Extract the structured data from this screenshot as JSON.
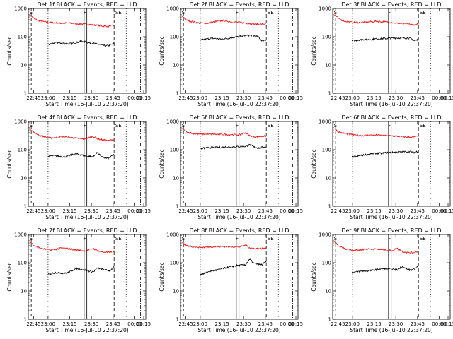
{
  "chart_data": {
    "type": "line",
    "layout": "3x3 grid of panels",
    "x_tick_labels": [
      "22:45",
      "23:00",
      "23:15",
      "23:30",
      "23:45",
      "00:00",
      "00:15"
    ],
    "y_tick_labels": [
      "1",
      "10",
      "100",
      "1000"
    ],
    "ylim": [
      1,
      1000
    ],
    "yscale": "log",
    "ylabel": "Counts/sec",
    "xlabel": "Start Time (16-Jul-10 22:37:20)",
    "series_colors": {
      "events": "#000000",
      "lld": "#ff0000"
    },
    "panels": [
      {
        "title": "Det 1f BLACK = Events, RED = LLD",
        "events": [
          52,
          58,
          62,
          60,
          58,
          56,
          58,
          63,
          70,
          66,
          60,
          58,
          55,
          50,
          47,
          50,
          58
        ],
        "lld": [
          600,
          420,
          360,
          330,
          320,
          310,
          300,
          305,
          300,
          290,
          280,
          275,
          260,
          250,
          240,
          235,
          250
        ],
        "markers": {
          "S": true,
          "F": true,
          "SE": true
        }
      },
      {
        "title": "Det 2f BLACK = Events, RED = LLD",
        "events": [
          75,
          80,
          85,
          88,
          85,
          82,
          85,
          90,
          95,
          100,
          105,
          110,
          112,
          108,
          100,
          70,
          80
        ],
        "lld": [
          550,
          380,
          340,
          310,
          300,
          305,
          330,
          360,
          370,
          350,
          330,
          320,
          310,
          290,
          280,
          275,
          290
        ],
        "markers": {
          "S": true,
          "F": true,
          "SE": true
        }
      },
      {
        "title": "Det 3f BLACK = Events, RED = LLD",
        "events": [
          72,
          75,
          78,
          80,
          80,
          82,
          85,
          85,
          87,
          88,
          90,
          90,
          92,
          90,
          88,
          72,
          80
        ],
        "lld": [
          600,
          420,
          360,
          330,
          320,
          320,
          330,
          340,
          350,
          345,
          330,
          320,
          300,
          290,
          280,
          265,
          280
        ],
        "markers": {
          "S": true,
          "F": true,
          "SE": true
        }
      },
      {
        "title": "Det 4f BLACK = Events, RED = LLD",
        "events": [
          58,
          62,
          60,
          58,
          56,
          60,
          68,
          70,
          66,
          60,
          58,
          56,
          80,
          55,
          50,
          52,
          70
        ],
        "lld": [
          580,
          380,
          320,
          280,
          260,
          270,
          290,
          280,
          270,
          250,
          240,
          260,
          300,
          240,
          220,
          210,
          230
        ],
        "markers": {
          "S": true,
          "F": true,
          "SE": true
        }
      },
      {
        "title": "Det 5f BLACK = Events, RED = LLD",
        "events": [
          110,
          115,
          118,
          120,
          120,
          122,
          125,
          125,
          127,
          128,
          130,
          132,
          150,
          125,
          115,
          120,
          130
        ],
        "lld": [
          550,
          420,
          380,
          360,
          355,
          350,
          350,
          352,
          350,
          345,
          340,
          338,
          400,
          300,
          290,
          295,
          310
        ],
        "markers": {
          "S": true,
          "F": true,
          "SE": true
        }
      },
      {
        "title": "Det 6f BLACK = Events, RED = LLD",
        "events": [
          55,
          58,
          62,
          66,
          70,
          72,
          75,
          75,
          78,
          80,
          80,
          82,
          84,
          85,
          86,
          80,
          90
        ],
        "lld": [
          560,
          420,
          380,
          350,
          330,
          320,
          320,
          330,
          330,
          325,
          320,
          310,
          300,
          290,
          280,
          275,
          300
        ],
        "markers": {
          "S": true,
          "F": true,
          "SE": true
        }
      },
      {
        "title": "Det 7f BLACK = Events, RED = LLD",
        "events": [
          38,
          42,
          45,
          44,
          42,
          45,
          55,
          62,
          60,
          55,
          50,
          48,
          65,
          60,
          55,
          52,
          70
        ],
        "lld": [
          560,
          380,
          330,
          300,
          280,
          300,
          330,
          320,
          300,
          280,
          270,
          270,
          320,
          260,
          240,
          230,
          260
        ],
        "markers": {
          "S": true,
          "F": true,
          "SE": true
        }
      },
      {
        "title": "Det 8f BLACK = Events, RED = LLD",
        "events": [
          38,
          42,
          48,
          52,
          55,
          60,
          65,
          70,
          75,
          80,
          82,
          85,
          130,
          95,
          88,
          85,
          110
        ],
        "lld": [
          520,
          400,
          370,
          360,
          350,
          360,
          370,
          370,
          375,
          372,
          370,
          365,
          420,
          330,
          320,
          315,
          340
        ],
        "markers": {
          "S": true,
          "F": true,
          "SE": true
        }
      },
      {
        "title": "Det 9f BLACK = Events, RED = LLD",
        "events": [
          45,
          48,
          50,
          52,
          52,
          54,
          58,
          60,
          62,
          60,
          58,
          56,
          75,
          60,
          55,
          58,
          80
        ],
        "lld": [
          560,
          380,
          320,
          290,
          280,
          285,
          300,
          305,
          300,
          290,
          280,
          270,
          320,
          250,
          230,
          225,
          260
        ],
        "markers": {
          "S": true,
          "F": true,
          "SE": true
        }
      }
    ]
  }
}
